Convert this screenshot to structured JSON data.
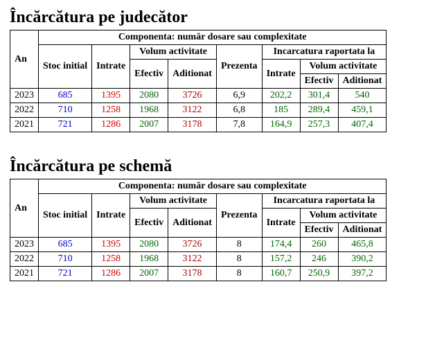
{
  "headers": {
    "an": "An",
    "componenta": "Componenta: număr dosare sau complexitate",
    "stoc": "Stoc initial",
    "intrate": "Intrate",
    "volum": "Volum activitate",
    "efectiv": "Efectiv",
    "aditionat": "Aditionat",
    "prezenta": "Prezenta",
    "incarc": "Incarcatura raportata la"
  },
  "colors": {
    "stoc": "val-blue",
    "intrate": "val-red",
    "vol_efectiv": "val-green",
    "vol_aditionat": "val-dred",
    "prezenta": "val-black",
    "ir_intrate": "val-green",
    "ir_vol_efectiv": "val-green",
    "ir_vol_aditionat": "val-green"
  },
  "table1": {
    "title": "Încărcătura pe judecător",
    "rows": [
      {
        "an": "2023",
        "stoc": "685",
        "intrate": "1395",
        "ve": "2080",
        "va": "3726",
        "prez": "6,9",
        "ir_i": "202,2",
        "ir_ve": "301,4",
        "ir_va": "540"
      },
      {
        "an": "2022",
        "stoc": "710",
        "intrate": "1258",
        "ve": "1968",
        "va": "3122",
        "prez": "6,8",
        "ir_i": "185",
        "ir_ve": "289,4",
        "ir_va": "459,1"
      },
      {
        "an": "2021",
        "stoc": "721",
        "intrate": "1286",
        "ve": "2007",
        "va": "3178",
        "prez": "7,8",
        "ir_i": "164,9",
        "ir_ve": "257,3",
        "ir_va": "407,4"
      }
    ]
  },
  "table2": {
    "title": "Încărcătura pe schemă",
    "rows": [
      {
        "an": "2023",
        "stoc": "685",
        "intrate": "1395",
        "ve": "2080",
        "va": "3726",
        "prez": "8",
        "ir_i": "174,4",
        "ir_ve": "260",
        "ir_va": "465,8"
      },
      {
        "an": "2022",
        "stoc": "710",
        "intrate": "1258",
        "ve": "1968",
        "va": "3122",
        "prez": "8",
        "ir_i": "157,2",
        "ir_ve": "246",
        "ir_va": "390,2"
      },
      {
        "an": "2021",
        "stoc": "721",
        "intrate": "1286",
        "ve": "2007",
        "va": "3178",
        "prez": "8",
        "ir_i": "160,7",
        "ir_ve": "250,9",
        "ir_va": "397,2"
      }
    ]
  }
}
